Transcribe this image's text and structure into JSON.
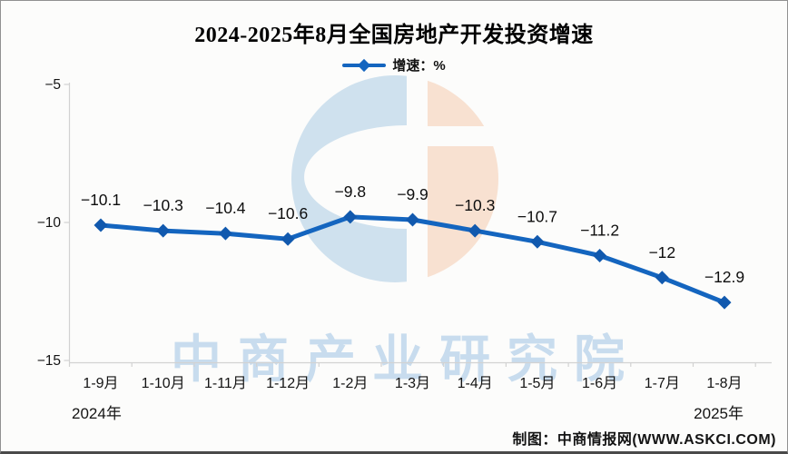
{
  "chart_data": {
    "type": "line",
    "title": "2024-2025年8月全国房地产开发投资增速",
    "legend": {
      "label": "增速：%",
      "position": "top"
    },
    "categories": [
      "1-9月",
      "1-10月",
      "1-11月",
      "1-12月",
      "1-2月",
      "1-3月",
      "1-4月",
      "1-5月",
      "1-6月",
      "1-7月",
      "1-8月"
    ],
    "series": [
      {
        "name": "增速",
        "values": [
          -10.1,
          -10.3,
          -10.4,
          -10.6,
          -9.8,
          -9.9,
          -10.3,
          -10.7,
          -11.2,
          -12,
          -12.9
        ]
      }
    ],
    "yticks": [
      -5,
      -10,
      -15
    ],
    "ylim": [
      -15,
      -5
    ],
    "xlabel": "",
    "ylabel": "",
    "grid": false,
    "year_labels": {
      "left": "2024年",
      "right": "2025年"
    }
  },
  "watermark": {
    "text": "中商产业研究院"
  },
  "footer": {
    "credit": "制图：中商情报网(WWW.ASKCI.COM)"
  },
  "colors": {
    "line": "#1465bf",
    "marker": "#1159ae",
    "label_text": "#0d0d0d",
    "axis": "#d2d2d2",
    "logo_blue": "#cfe1ee",
    "logo_orange": "#f8e1d1",
    "watermark_text": "#c8dcee"
  }
}
